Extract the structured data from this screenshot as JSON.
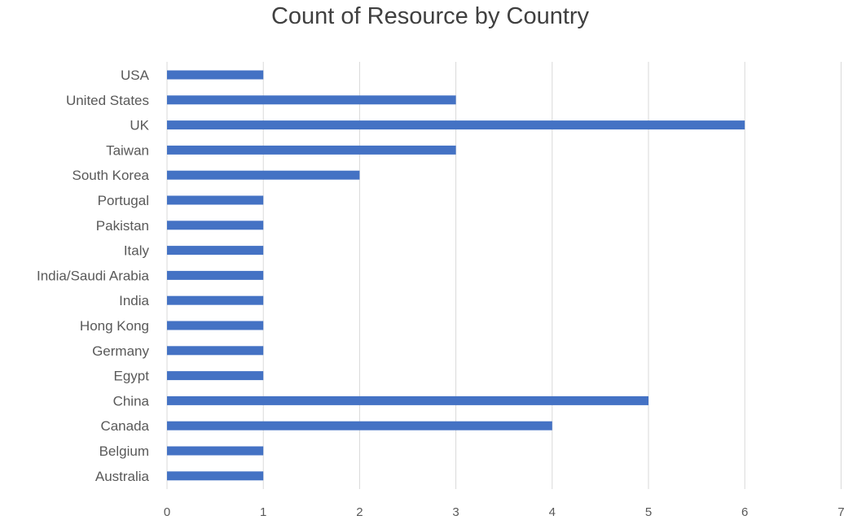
{
  "chart_data": {
    "type": "bar",
    "orientation": "horizontal",
    "title": "Count of Resource by Country",
    "xlabel": "",
    "ylabel": "",
    "xlim": [
      0,
      7
    ],
    "x_ticks": [
      "0",
      "1",
      "2",
      "3",
      "4",
      "5",
      "6",
      "7"
    ],
    "grid": "vertical",
    "legend": "none",
    "bar_color": "#4472C4",
    "categories": [
      "USA",
      "United States",
      "UK",
      "Taiwan",
      "South Korea",
      "Portugal",
      "Pakistan",
      "Italy",
      "India/Saudi Arabia",
      "India",
      "Hong Kong",
      "Germany",
      "Egypt",
      "China",
      "Canada",
      "Belgium",
      "Australia"
    ],
    "values": [
      1,
      3,
      6,
      3,
      2,
      1,
      1,
      1,
      1,
      1,
      1,
      1,
      1,
      5,
      4,
      1,
      1
    ]
  }
}
